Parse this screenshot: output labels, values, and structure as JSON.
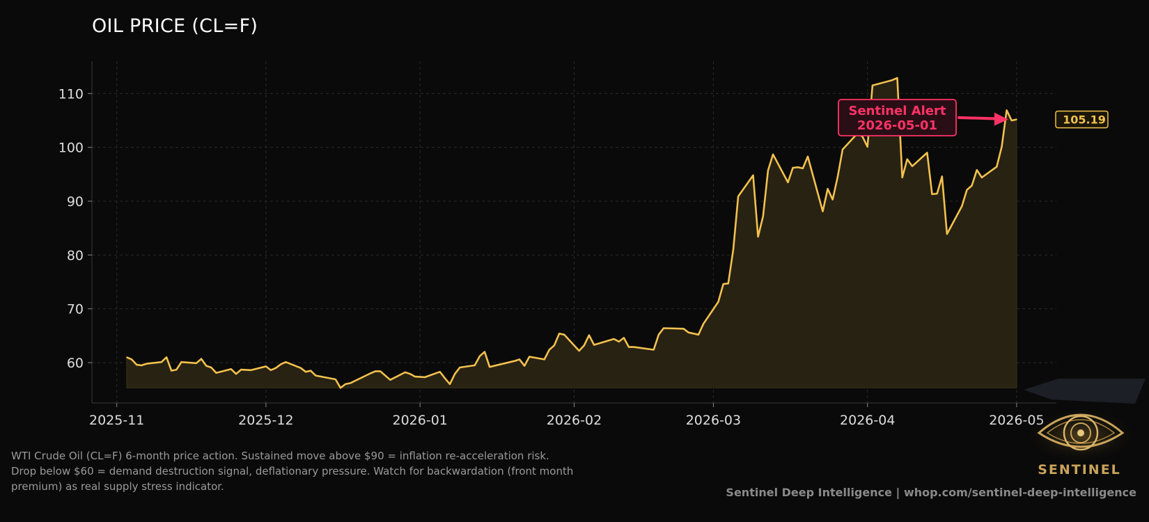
{
  "title": "OIL PRICE (CL=F)",
  "caption_lines": [
    "WTI Crude Oil (CL=F) 6-month price action. Sustained move above $90 = inflation re-acceleration risk.",
    "Drop below $60 = demand destruction signal, deflationary pressure. Watch for backwardation (front month",
    "premium) as real supply stress indicator."
  ],
  "footer": "Sentinel Deep Intelligence  |  whop.com/sentinel-deep-intelligence",
  "logo_text": "SENTINEL",
  "colors": {
    "background": "#0a0a0a",
    "line": "#f2c14e",
    "fill": "#2a2414",
    "alert": "#ff3366",
    "grid": "#2a2a2a"
  },
  "chart_data": {
    "type": "area",
    "title": "OIL PRICE (CL=F)",
    "xlabel": "",
    "ylabel": "",
    "x_ticks": [
      "2025-11-01",
      "2025-12-01",
      "2026-01-01",
      "2026-02-01",
      "2026-03-01",
      "2026-04-01",
      "2026-05-01"
    ],
    "x_tick_labels": [
      "2025-11",
      "2025-12",
      "2026-01",
      "2026-02",
      "2026-03",
      "2026-04",
      "2026-05"
    ],
    "y_ticks": [
      60,
      70,
      80,
      90,
      100,
      110
    ],
    "xlim": [
      "2025-10-27",
      "2026-05-09"
    ],
    "ylim": [
      52.5,
      116
    ],
    "grid": true,
    "series": [
      {
        "points": [
          [
            "2025-11-03",
            61.0
          ],
          [
            "2025-11-04",
            60.6
          ],
          [
            "2025-11-05",
            59.6
          ],
          [
            "2025-11-06",
            59.5
          ],
          [
            "2025-11-07",
            59.8
          ],
          [
            "2025-11-10",
            60.1
          ],
          [
            "2025-11-11",
            61.0
          ],
          [
            "2025-11-12",
            58.5
          ],
          [
            "2025-11-13",
            58.7
          ],
          [
            "2025-11-14",
            60.1
          ],
          [
            "2025-11-17",
            59.9
          ],
          [
            "2025-11-18",
            60.7
          ],
          [
            "2025-11-19",
            59.4
          ],
          [
            "2025-11-20",
            59.1
          ],
          [
            "2025-11-21",
            58.1
          ],
          [
            "2025-11-24",
            58.8
          ],
          [
            "2025-11-25",
            57.9
          ],
          [
            "2025-11-26",
            58.7
          ],
          [
            "2025-11-28",
            58.6
          ],
          [
            "2025-12-01",
            59.3
          ],
          [
            "2025-12-02",
            58.6
          ],
          [
            "2025-12-03",
            59.0
          ],
          [
            "2025-12-04",
            59.7
          ],
          [
            "2025-12-05",
            60.1
          ],
          [
            "2025-12-08",
            59.0
          ],
          [
            "2025-12-09",
            58.3
          ],
          [
            "2025-12-10",
            58.5
          ],
          [
            "2025-12-11",
            57.6
          ],
          [
            "2025-12-15",
            56.9
          ],
          [
            "2025-12-16",
            55.3
          ],
          [
            "2025-12-17",
            56.0
          ],
          [
            "2025-12-18",
            56.2
          ],
          [
            "2025-12-22",
            58.0
          ],
          [
            "2025-12-23",
            58.4
          ],
          [
            "2025-12-24",
            58.4
          ],
          [
            "2025-12-26",
            56.8
          ],
          [
            "2025-12-29",
            58.2
          ],
          [
            "2025-12-30",
            57.9
          ],
          [
            "2025-12-31",
            57.4
          ],
          [
            "2026-01-02",
            57.3
          ],
          [
            "2026-01-05",
            58.3
          ],
          [
            "2026-01-06",
            57.1
          ],
          [
            "2026-01-07",
            56.0
          ],
          [
            "2026-01-08",
            57.9
          ],
          [
            "2026-01-09",
            59.1
          ],
          [
            "2026-01-12",
            59.5
          ],
          [
            "2026-01-13",
            61.2
          ],
          [
            "2026-01-14",
            62.0
          ],
          [
            "2026-01-15",
            59.2
          ],
          [
            "2026-01-20",
            60.3
          ],
          [
            "2026-01-21",
            60.6
          ],
          [
            "2026-01-22",
            59.4
          ],
          [
            "2026-01-23",
            61.1
          ],
          [
            "2026-01-26",
            60.6
          ],
          [
            "2026-01-27",
            62.4
          ],
          [
            "2026-01-28",
            63.2
          ],
          [
            "2026-01-29",
            65.4
          ],
          [
            "2026-01-30",
            65.2
          ],
          [
            "2026-02-02",
            62.2
          ],
          [
            "2026-02-03",
            63.2
          ],
          [
            "2026-02-04",
            65.1
          ],
          [
            "2026-02-05",
            63.3
          ],
          [
            "2026-02-09",
            64.4
          ],
          [
            "2026-02-10",
            63.9
          ],
          [
            "2026-02-11",
            64.6
          ],
          [
            "2026-02-12",
            62.9
          ],
          [
            "2026-02-13",
            62.9
          ],
          [
            "2026-02-17",
            62.4
          ],
          [
            "2026-02-18",
            65.2
          ],
          [
            "2026-02-19",
            66.4
          ],
          [
            "2026-02-23",
            66.3
          ],
          [
            "2026-02-24",
            65.6
          ],
          [
            "2026-02-26",
            65.2
          ],
          [
            "2026-02-27",
            67.2
          ],
          [
            "2026-03-02",
            71.3
          ],
          [
            "2026-03-03",
            74.6
          ],
          [
            "2026-03-04",
            74.7
          ],
          [
            "2026-03-05",
            81.0
          ],
          [
            "2026-03-06",
            90.9
          ],
          [
            "2026-03-09",
            94.8
          ],
          [
            "2026-03-10",
            83.4
          ],
          [
            "2026-03-11",
            87.2
          ],
          [
            "2026-03-12",
            95.7
          ],
          [
            "2026-03-13",
            98.7
          ],
          [
            "2026-03-16",
            93.5
          ],
          [
            "2026-03-17",
            96.2
          ],
          [
            "2026-03-18",
            96.3
          ],
          [
            "2026-03-19",
            96.1
          ],
          [
            "2026-03-20",
            98.3
          ],
          [
            "2026-03-23",
            88.1
          ],
          [
            "2026-03-24",
            92.3
          ],
          [
            "2026-03-25",
            90.3
          ],
          [
            "2026-03-26",
            94.5
          ],
          [
            "2026-03-27",
            99.6
          ],
          [
            "2026-03-30",
            102.6
          ],
          [
            "2026-03-31",
            102.0
          ],
          [
            "2026-04-01",
            100.1
          ],
          [
            "2026-04-02",
            111.5
          ],
          [
            "2026-04-06",
            112.5
          ],
          [
            "2026-04-07",
            112.9
          ],
          [
            "2026-04-08",
            94.4
          ],
          [
            "2026-04-09",
            97.8
          ],
          [
            "2026-04-10",
            96.5
          ],
          [
            "2026-04-13",
            99.0
          ],
          [
            "2026-04-14",
            91.3
          ],
          [
            "2026-04-15",
            91.4
          ],
          [
            "2026-04-16",
            94.6
          ],
          [
            "2026-04-17",
            83.9
          ],
          [
            "2026-04-20",
            89.1
          ],
          [
            "2026-04-21",
            92.1
          ],
          [
            "2026-04-22",
            92.9
          ],
          [
            "2026-04-23",
            95.8
          ],
          [
            "2026-04-24",
            94.4
          ],
          [
            "2026-04-27",
            96.4
          ],
          [
            "2026-04-28",
            100.1
          ],
          [
            "2026-04-29",
            106.9
          ],
          [
            "2026-04-30",
            105.0
          ],
          [
            "2026-05-01",
            105.19
          ]
        ]
      }
    ],
    "last_value_label": "105.19",
    "annotation": {
      "lines": [
        "Sentinel Alert",
        "2026-05-01"
      ],
      "target": [
        "2026-05-01",
        105.19
      ]
    }
  }
}
